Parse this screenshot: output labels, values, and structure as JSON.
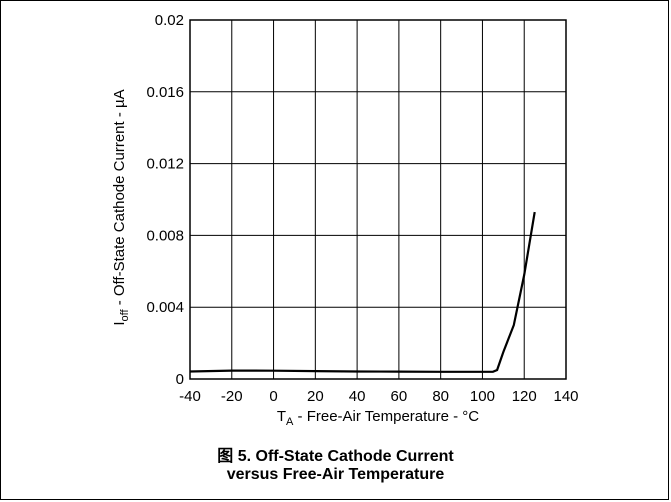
{
  "chart_data": {
    "type": "line",
    "xlabel": {
      "main": "T",
      "sub": "A",
      "rest": " - Free-Air Temperature - °C"
    },
    "ylabel": {
      "main": "I",
      "sub": "off",
      "rest": " - Off-State Cathode Current - µA"
    },
    "xlim": [
      -40,
      140
    ],
    "ylim": [
      0,
      0.02
    ],
    "x_ticks": [
      -40,
      -20,
      0,
      20,
      40,
      60,
      80,
      100,
      120,
      140
    ],
    "x_tick_labels": [
      "-40",
      "-20",
      "0",
      "20",
      "40",
      "60",
      "80",
      "100",
      "120",
      "140"
    ],
    "y_ticks": [
      0,
      0.004,
      0.008,
      0.012,
      0.016,
      0.02
    ],
    "y_tick_labels": [
      "0",
      "0.004",
      "0.008",
      "0.012",
      "0.016",
      "0.02"
    ],
    "grid": true,
    "series": [
      {
        "x": [
          -40,
          -20,
          0,
          20,
          40,
          60,
          80,
          100,
          105,
          107,
          110,
          115,
          120,
          125
        ],
        "y": [
          0.00042,
          0.00047,
          0.00046,
          0.00044,
          0.00042,
          0.00041,
          0.0004,
          0.0004,
          0.0004,
          0.0005,
          0.0015,
          0.003,
          0.0058,
          0.0093
        ]
      }
    ],
    "caption": [
      "图 5. Off-State Cathode Current",
      "versus Free-Air Temperature"
    ]
  },
  "colors": {
    "line": "#000000",
    "grid": "#000000",
    "background": "#ffffff"
  }
}
